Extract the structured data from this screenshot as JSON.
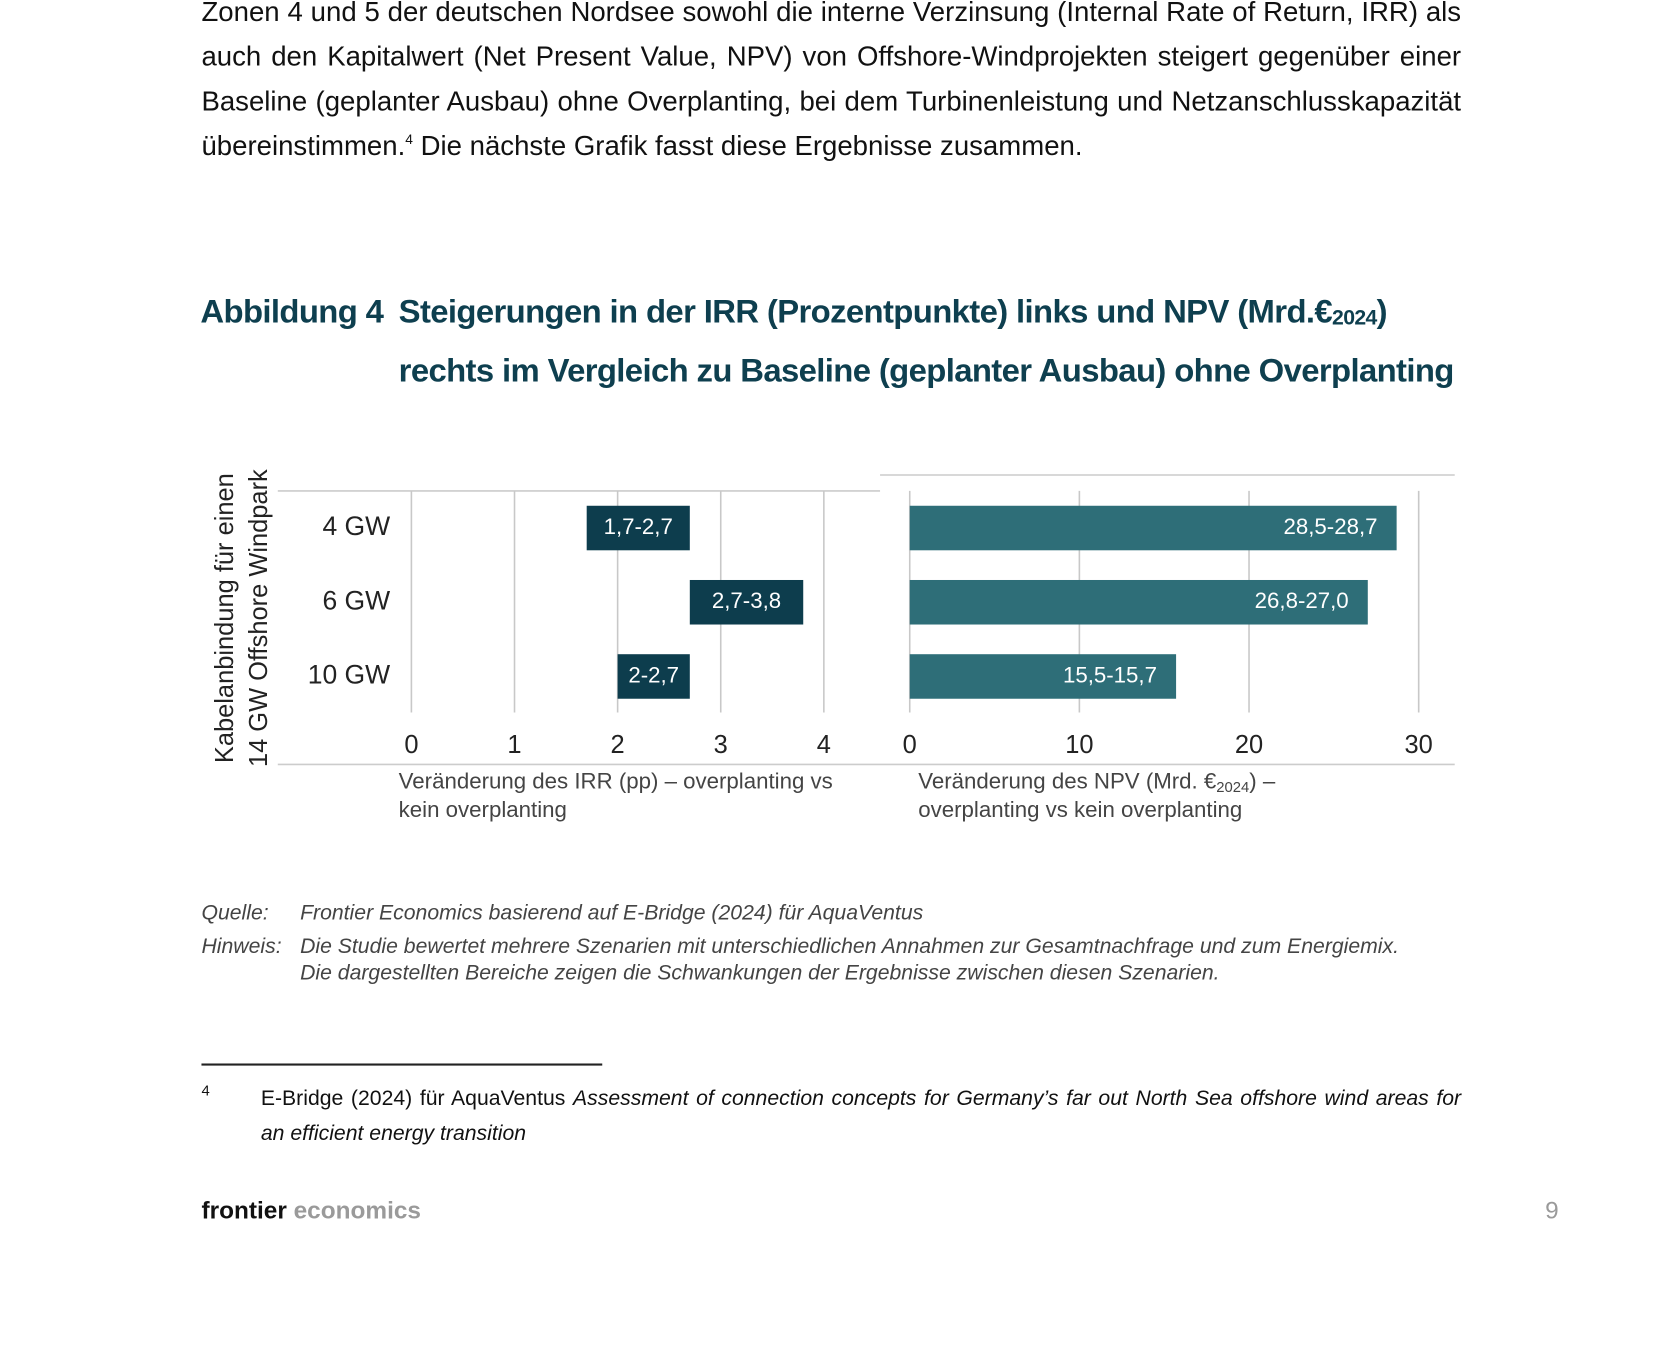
{
  "paragraph": {
    "text": "Zonen 4 und 5 der deutschen Nordsee sowohl die interne Verzinsung (Internal Rate of Return, IRR) als auch den Kapitalwert (Net Present Value, NPV) von Offshore-Windprojekten steigert gegenüber einer Baseline (geplanter Ausbau) ohne Overplanting, bei dem Turbinenleistung und Netzanschlusskapazität übereinstimmen.",
    "footnote_ref": "4",
    "text_after": "Die nächste Grafik fasst diese Ergebnisse zusammen."
  },
  "figure": {
    "label": "Abbildung 4",
    "title": [
      "Steigerungen in der IRR (Prozentpunkte) links und NPV (Mrd.€",
      "2024",
      ")"
    ],
    "title_line2": "rechts im Vergleich zu Baseline (geplanter Ausbau) ohne Overplanting",
    "source_label": "Quelle:",
    "source": "Frontier Economics basierend auf E-Bridge (2024) für AquaVentus",
    "note_label": "Hinweis:",
    "note": [
      "Die Studie bewertet mehrere Szenarien mit unterschiedlichen Annahmen zur Gesamtnachfrage und zum Energiemix.",
      "Die dargestellten Bereiche zeigen die Schwankungen der Ergebnisse zwischen diesen Szenarien."
    ]
  },
  "chart_data": [
    {
      "type": "bar",
      "ylabel": [
        "Kabelanbindung für einen",
        "14 GW Offshore Windpark"
      ],
      "categories": [
        "4 GW",
        "6 GW",
        "10 GW"
      ],
      "values": [
        [
          1.7,
          2.7
        ],
        [
          2.7,
          3.8
        ],
        [
          2,
          2.7
        ]
      ],
      "value_labels": [
        "1,7-2,7",
        "2,7-3,8",
        "2-2,7"
      ],
      "bars_from_zero": false,
      "color": "#0d3d4d",
      "xlim": [
        0,
        4
      ],
      "xticks": [
        0,
        1,
        2,
        3,
        4
      ],
      "grid": true,
      "xlabel": [
        [
          "Veränderung des IRR (pp) – overplanting vs"
        ],
        [
          "kein overplanting"
        ]
      ]
    },
    {
      "type": "bar",
      "values": [
        [
          28.5,
          28.7
        ],
        [
          26.8,
          27
        ],
        [
          15.5,
          15.7
        ]
      ],
      "value_labels": [
        "28,5-28,7",
        "26,8-27,0",
        "15,5-15,7"
      ],
      "bars_from_zero": true,
      "color": "#2e6e78",
      "xlim": [
        0,
        30
      ],
      "xticks": [
        0,
        10,
        20,
        30
      ],
      "grid": true,
      "xlabel": [
        [
          "Veränderung des NPV (Mrd. €",
          "2024",
          ") –"
        ],
        [
          "overplanting vs kein overplanting"
        ]
      ]
    }
  ],
  "footnote": {
    "number": "4",
    "text": "E-Bridge (2024) für AquaVentus",
    "title": "Assessment of connection concepts for Germany’s far out North Sea offshore wind areas for an efficient energy transition"
  },
  "footer": {
    "brand_bold": "frontier",
    "brand_light": "economics",
    "page": "9"
  }
}
